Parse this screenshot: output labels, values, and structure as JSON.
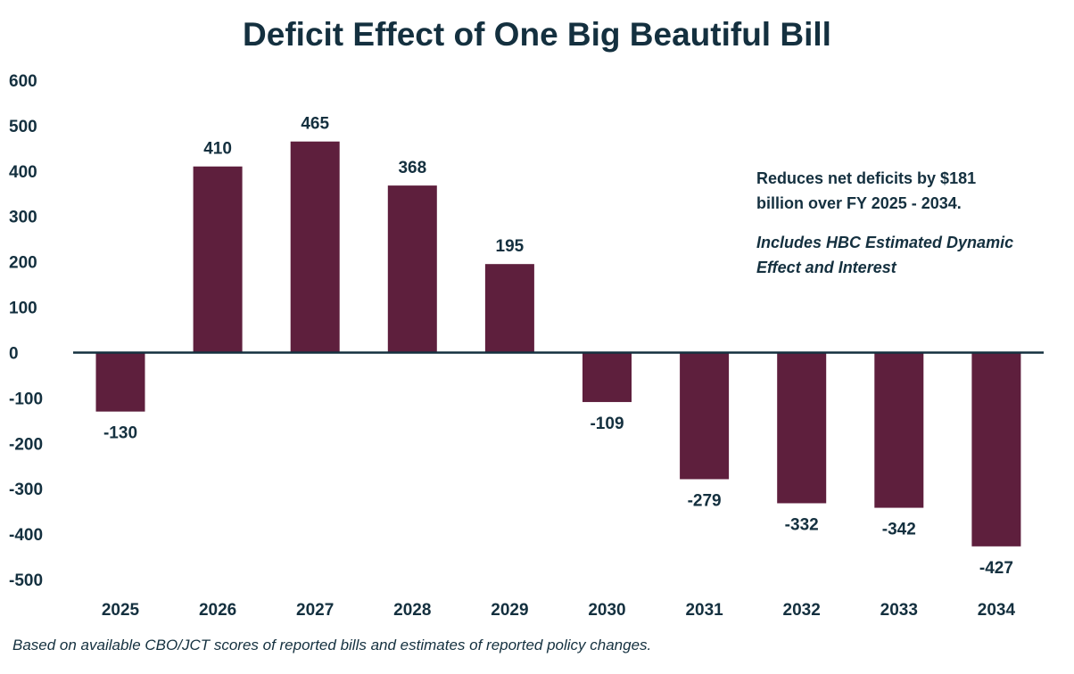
{
  "chart_data": {
    "type": "bar",
    "title": "Deficit Effect of One Big Beautiful Bill",
    "categories": [
      "2025",
      "2026",
      "2027",
      "2028",
      "2029",
      "2030",
      "2031",
      "2032",
      "2033",
      "2034"
    ],
    "values": [
      -130,
      410,
      465,
      368,
      195,
      -109,
      -279,
      -332,
      -342,
      -427
    ],
    "yticks": [
      600,
      500,
      400,
      300,
      200,
      100,
      0,
      -100,
      -200,
      -300,
      -400,
      -500
    ],
    "ylim": [
      -500,
      600
    ],
    "xlabel": "",
    "ylabel": "",
    "grid": false,
    "bar_color": "#5e1f3d",
    "text_color": "#14303f",
    "annotations": [
      "Reduces net deficits by $181 billion over FY 2025 - 2034.",
      "Includes HBC Estimated Dynamic Effect and Interest"
    ],
    "footer": "Based on available CBO/JCT scores of reported bills and estimates of reported policy changes."
  }
}
